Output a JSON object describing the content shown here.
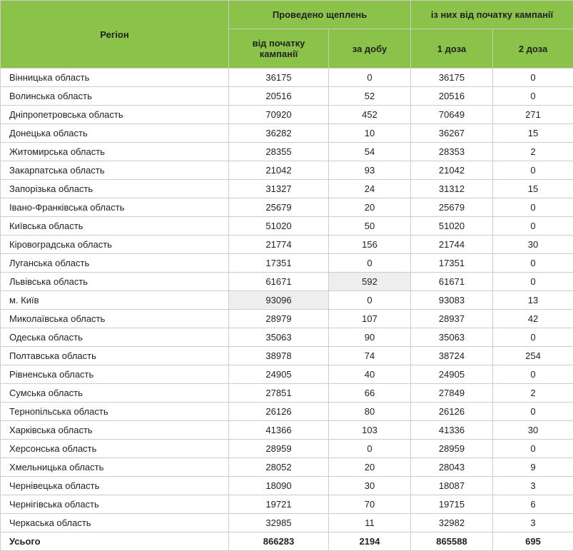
{
  "header": {
    "bg_color": "#8bc34a",
    "region": "Регіон",
    "group1": "Проведено щеплень",
    "group2": "із них від початку кампанії",
    "col1": "від початку кампанії",
    "col2": "за добу",
    "col3": "1 доза",
    "col4": "2 доза"
  },
  "highlight_bg": "#eeeeee",
  "rows": [
    {
      "region": "Вінницька область",
      "c1": "36175",
      "c2": "0",
      "c3": "36175",
      "c4": "0"
    },
    {
      "region": "Волинська область",
      "c1": "20516",
      "c2": "52",
      "c3": "20516",
      "c4": "0"
    },
    {
      "region": "Дніпропетровська область",
      "c1": "70920",
      "c2": "452",
      "c3": "70649",
      "c4": "271"
    },
    {
      "region": "Донецька область",
      "c1": "36282",
      "c2": "10",
      "c3": "36267",
      "c4": "15"
    },
    {
      "region": "Житомирська область",
      "c1": "28355",
      "c2": "54",
      "c3": "28353",
      "c4": "2"
    },
    {
      "region": "Закарпатська область",
      "c1": "21042",
      "c2": "93",
      "c3": "21042",
      "c4": "0"
    },
    {
      "region": "Запорізька область",
      "c1": "31327",
      "c2": "24",
      "c3": "31312",
      "c4": "15"
    },
    {
      "region": "Івано-Франківська область",
      "c1": "25679",
      "c2": "20",
      "c3": "25679",
      "c4": "0"
    },
    {
      "region": "Київська область",
      "c1": "51020",
      "c2": "50",
      "c3": "51020",
      "c4": "0"
    },
    {
      "region": "Кіровоградська область",
      "c1": "21774",
      "c2": "156",
      "c3": "21744",
      "c4": "30"
    },
    {
      "region": "Луганська область",
      "c1": "17351",
      "c2": "0",
      "c3": "17351",
      "c4": "0"
    },
    {
      "region": "Львівська область",
      "c1": "61671",
      "c2": "592",
      "c3": "61671",
      "c4": "0",
      "hl_c2": true
    },
    {
      "region": "м. Київ",
      "c1": "93096",
      "c2": "0",
      "c3": "93083",
      "c4": "13",
      "hl_c1": true
    },
    {
      "region": "Миколаївська область",
      "c1": "28979",
      "c2": "107",
      "c3": "28937",
      "c4": "42"
    },
    {
      "region": "Одеська область",
      "c1": "35063",
      "c2": "90",
      "c3": "35063",
      "c4": "0"
    },
    {
      "region": "Полтавська область",
      "c1": "38978",
      "c2": "74",
      "c3": "38724",
      "c4": "254"
    },
    {
      "region": "Рівненська область",
      "c1": "24905",
      "c2": "40",
      "c3": "24905",
      "c4": "0"
    },
    {
      "region": "Сумська область",
      "c1": "27851",
      "c2": "66",
      "c3": "27849",
      "c4": "2"
    },
    {
      "region": "Тернопільська область",
      "c1": "26126",
      "c2": "80",
      "c3": "26126",
      "c4": "0"
    },
    {
      "region": "Харківська область",
      "c1": "41366",
      "c2": "103",
      "c3": "41336",
      "c4": "30"
    },
    {
      "region": "Херсонська область",
      "c1": "28959",
      "c2": "0",
      "c3": "28959",
      "c4": "0"
    },
    {
      "region": "Хмельницька область",
      "c1": "28052",
      "c2": "20",
      "c3": "28043",
      "c4": "9"
    },
    {
      "region": "Чернівецька область",
      "c1": "18090",
      "c2": "30",
      "c3": "18087",
      "c4": "3"
    },
    {
      "region": "Чернігівська область",
      "c1": "19721",
      "c2": "70",
      "c3": "19715",
      "c4": "6"
    },
    {
      "region": "Черкаська область",
      "c1": "32985",
      "c2": "11",
      "c3": "32982",
      "c4": "3"
    }
  ],
  "total": {
    "region": "Усього",
    "c1": "866283",
    "c2": "2194",
    "c3": "865588",
    "c4": "695"
  }
}
